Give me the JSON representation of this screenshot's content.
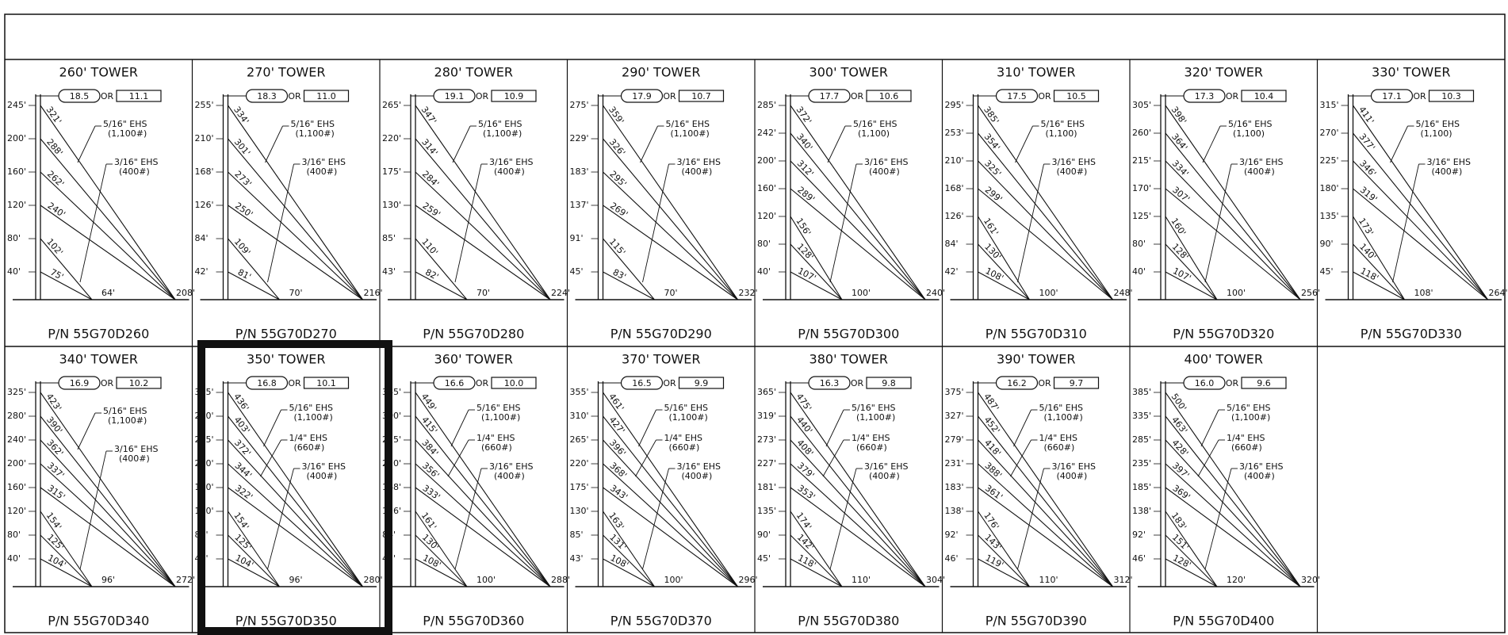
{
  "or_label": "OR",
  "towers": [
    {
      "title": "260' TOWER",
      "oval": "18.5",
      "box": "11.1",
      "heights": [
        "245'",
        "200'",
        "160'",
        "120'",
        "80'",
        "40'"
      ],
      "outer_guys": [
        "321'",
        "288'",
        "262'",
        "240'"
      ],
      "inner_guys": [
        "102'",
        "75'"
      ],
      "inner_anchor": "64'",
      "outer_anchor": "208'",
      "wires": [
        {
          "size": "5/16\" EHS",
          "rating": "(1,100#)"
        },
        {
          "size": "3/16\" EHS",
          "rating": "(400#)"
        }
      ],
      "pn": "P/N 55G70D260"
    },
    {
      "title": "270' TOWER",
      "oval": "18.3",
      "box": "11.0",
      "heights": [
        "255'",
        "210'",
        "168'",
        "126'",
        "84'",
        "42'"
      ],
      "outer_guys": [
        "334'",
        "301'",
        "273'",
        "250'"
      ],
      "inner_guys": [
        "109'",
        "81'"
      ],
      "inner_anchor": "70'",
      "outer_anchor": "216'",
      "wires": [
        {
          "size": "5/16\" EHS",
          "rating": "(1,100#)"
        },
        {
          "size": "3/16\" EHS",
          "rating": "(400#)"
        }
      ],
      "pn": "P/N 55G70D270"
    },
    {
      "title": "280' TOWER",
      "oval": "19.1",
      "box": "10.9",
      "heights": [
        "265'",
        "220'",
        "175'",
        "130'",
        "85'",
        "43'"
      ],
      "outer_guys": [
        "347'",
        "314'",
        "284'",
        "259'"
      ],
      "inner_guys": [
        "110'",
        "82'"
      ],
      "inner_anchor": "70'",
      "outer_anchor": "224'",
      "wires": [
        {
          "size": "5/16\" EHS",
          "rating": "(1,100#)"
        },
        {
          "size": "3/16\" EHS",
          "rating": "(400#)"
        }
      ],
      "pn": "P/N 55G70D280"
    },
    {
      "title": "290' TOWER",
      "oval": "17.9",
      "box": "10.7",
      "heights": [
        "275'",
        "229'",
        "183'",
        "137'",
        "91'",
        "45'"
      ],
      "outer_guys": [
        "359'",
        "326'",
        "295'",
        "269'"
      ],
      "inner_guys": [
        "115'",
        "83'"
      ],
      "inner_anchor": "70'",
      "outer_anchor": "232'",
      "wires": [
        {
          "size": "5/16\" EHS",
          "rating": "(1,100#)"
        },
        {
          "size": "3/16\" EHS",
          "rating": "(400#)"
        }
      ],
      "pn": "P/N 55G70D290"
    },
    {
      "title": "300' TOWER",
      "oval": "17.7",
      "box": "10.6",
      "heights": [
        "285'",
        "242'",
        "200'",
        "160'",
        "120'",
        "80'",
        "40'"
      ],
      "outer_guys": [
        "372'",
        "340'",
        "312'",
        "289'"
      ],
      "inner_guys": [
        "156'",
        "128'",
        "107'"
      ],
      "inner_anchor": "100'",
      "outer_anchor": "240'",
      "wires": [
        {
          "size": "5/16\" EHS",
          "rating": "(1,100)"
        },
        {
          "size": "3/16\" EHS",
          "rating": "(400#)"
        }
      ],
      "pn": "P/N 55G70D300"
    },
    {
      "title": "310' TOWER",
      "oval": "17.5",
      "box": "10.5",
      "heights": [
        "295'",
        "253'",
        "210'",
        "168'",
        "126'",
        "84'",
        "42'"
      ],
      "outer_guys": [
        "385'",
        "354'",
        "325'",
        "299'"
      ],
      "inner_guys": [
        "161'",
        "130'",
        "108'"
      ],
      "inner_anchor": "100'",
      "outer_anchor": "248'",
      "wires": [
        {
          "size": "5/16\" EHS",
          "rating": "(1,100)"
        },
        {
          "size": "3/16\" EHS",
          "rating": "(400#)"
        }
      ],
      "pn": "P/N 55G70D310"
    },
    {
      "title": "320' TOWER",
      "oval": "17.3",
      "box": "10.4",
      "heights": [
        "305'",
        "260'",
        "215'",
        "170'",
        "125'",
        "80'",
        "40'"
      ],
      "outer_guys": [
        "398'",
        "364'",
        "334'",
        "307'"
      ],
      "inner_guys": [
        "160'",
        "128'",
        "107'"
      ],
      "inner_anchor": "100'",
      "outer_anchor": "256'",
      "wires": [
        {
          "size": "5/16\" EHS",
          "rating": "(1,100)"
        },
        {
          "size": "3/16\" EHS",
          "rating": "(400#)"
        }
      ],
      "pn": "P/N 55G70D320"
    },
    {
      "title": "330' TOWER",
      "oval": "17.1",
      "box": "10.3",
      "heights": [
        "315'",
        "270'",
        "225'",
        "180'",
        "135'",
        "90'",
        "45'"
      ],
      "outer_guys": [
        "411'",
        "377'",
        "346'",
        "319'"
      ],
      "inner_guys": [
        "173'",
        "140'",
        "118'"
      ],
      "inner_anchor": "108'",
      "outer_anchor": "264'",
      "wires": [
        {
          "size": "5/16\" EHS",
          "rating": "(1,100)"
        },
        {
          "size": "3/16\" EHS",
          "rating": "(400#)"
        }
      ],
      "pn": "P/N 55G70D330"
    },
    {
      "title": "340' TOWER",
      "oval": "16.9",
      "box": "10.2",
      "heights": [
        "325'",
        "280'",
        "240'",
        "200'",
        "160'",
        "120'",
        "80'",
        "40'"
      ],
      "outer_guys": [
        "423'",
        "390'",
        "362'",
        "337'",
        "315'"
      ],
      "inner_guys": [
        "154'",
        "125'",
        "104'"
      ],
      "inner_anchor": "96'",
      "outer_anchor": "272'",
      "wires": [
        {
          "size": "5/16\" EHS",
          "rating": "(1,100#)"
        },
        {
          "size": "3/16\" EHS",
          "rating": "(400#)"
        }
      ],
      "pn": "P/N 55G70D340"
    },
    {
      "title": "350' TOWER",
      "oval": "16.8",
      "box": "10.1",
      "heights": [
        "335'",
        "290'",
        "245'",
        "200'",
        "160'",
        "120'",
        "80'",
        "40'"
      ],
      "outer_guys": [
        "436'",
        "403'",
        "372'",
        "344'",
        "322'"
      ],
      "inner_guys": [
        "154'",
        "125'",
        "104'"
      ],
      "inner_anchor": "96'",
      "outer_anchor": "280'",
      "wires": [
        {
          "size": "5/16\" EHS",
          "rating": "(1,100#)"
        },
        {
          "size": "1/4\" EHS",
          "rating": "(660#)"
        },
        {
          "size": "3/16\" EHS",
          "rating": "(400#)"
        }
      ],
      "pn": "P/N 55G70D350"
    },
    {
      "title": "360' TOWER",
      "oval": "16.6",
      "box": "10.0",
      "heights": [
        "345'",
        "300'",
        "255'",
        "210'",
        "168'",
        "126'",
        "84'",
        "42'"
      ],
      "outer_guys": [
        "449'",
        "415'",
        "384'",
        "356'",
        "333'"
      ],
      "inner_guys": [
        "161'",
        "130'",
        "108'"
      ],
      "inner_anchor": "100'",
      "outer_anchor": "288'",
      "wires": [
        {
          "size": "5/16\" EHS",
          "rating": "(1,100#)"
        },
        {
          "size": "1/4\" EHS",
          "rating": "(660#)"
        },
        {
          "size": "3/16\" EHS",
          "rating": "(400#)"
        }
      ],
      "pn": "P/N 55G70D360"
    },
    {
      "title": "370' TOWER",
      "oval": "16.5",
      "box": "9.9",
      "heights": [
        "355'",
        "310'",
        "265'",
        "220'",
        "175'",
        "130'",
        "85'",
        "43'"
      ],
      "outer_guys": [
        "461'",
        "427'",
        "396'",
        "368'",
        "343'"
      ],
      "inner_guys": [
        "163'",
        "131'",
        "108'"
      ],
      "inner_anchor": "100'",
      "outer_anchor": "296'",
      "wires": [
        {
          "size": "5/16\" EHS",
          "rating": "(1,100#)"
        },
        {
          "size": "1/4\" EHS",
          "rating": "(660#)"
        },
        {
          "size": "3/16\" EHS",
          "rating": "(400#)"
        }
      ],
      "pn": "P/N 55G70D370"
    },
    {
      "title": "380' TOWER",
      "oval": "16.3",
      "box": "9.8",
      "heights": [
        "365'",
        "319'",
        "273'",
        "227'",
        "181'",
        "135'",
        "90'",
        "45'"
      ],
      "outer_guys": [
        "475'",
        "440'",
        "408'",
        "379'",
        "353'"
      ],
      "inner_guys": [
        "174'",
        "142'",
        "118'"
      ],
      "inner_anchor": "110'",
      "outer_anchor": "304'",
      "wires": [
        {
          "size": "5/16\" EHS",
          "rating": "(1,100#)"
        },
        {
          "size": "1/4\" EHS",
          "rating": "(660#)"
        },
        {
          "size": "3/16\" EHS",
          "rating": "(400#)"
        }
      ],
      "pn": "P/N 55G70D380"
    },
    {
      "title": "390' TOWER",
      "oval": "16.2",
      "box": "9.7",
      "heights": [
        "375'",
        "327'",
        "279'",
        "231'",
        "183'",
        "138'",
        "92'",
        "46'"
      ],
      "outer_guys": [
        "487'",
        "452'",
        "418'",
        "388'",
        "361'"
      ],
      "inner_guys": [
        "176'",
        "143'",
        "119'"
      ],
      "inner_anchor": "110'",
      "outer_anchor": "312'",
      "wires": [
        {
          "size": "5/16\" EHS",
          "rating": "(1,100#)"
        },
        {
          "size": "1/4\" EHS",
          "rating": "(660#)"
        },
        {
          "size": "3/16\" EHS",
          "rating": "(400#)"
        }
      ],
      "pn": "P/N 55G70D390"
    },
    {
      "title": "400' TOWER",
      "oval": "16.0",
      "box": "9.6",
      "heights": [
        "385'",
        "335'",
        "285'",
        "235'",
        "185'",
        "138'",
        "92'",
        "46'"
      ],
      "outer_guys": [
        "500'",
        "463'",
        "428'",
        "397'",
        "369'"
      ],
      "inner_guys": [
        "183'",
        "151'",
        "128'"
      ],
      "inner_anchor": "120'",
      "outer_anchor": "320'",
      "wires": [
        {
          "size": "5/16\" EHS",
          "rating": "(1,100#)"
        },
        {
          "size": "1/4\" EHS",
          "rating": "(660#)"
        },
        {
          "size": "3/16\" EHS",
          "rating": "(400#)"
        }
      ],
      "pn": "P/N 55G70D400"
    }
  ]
}
